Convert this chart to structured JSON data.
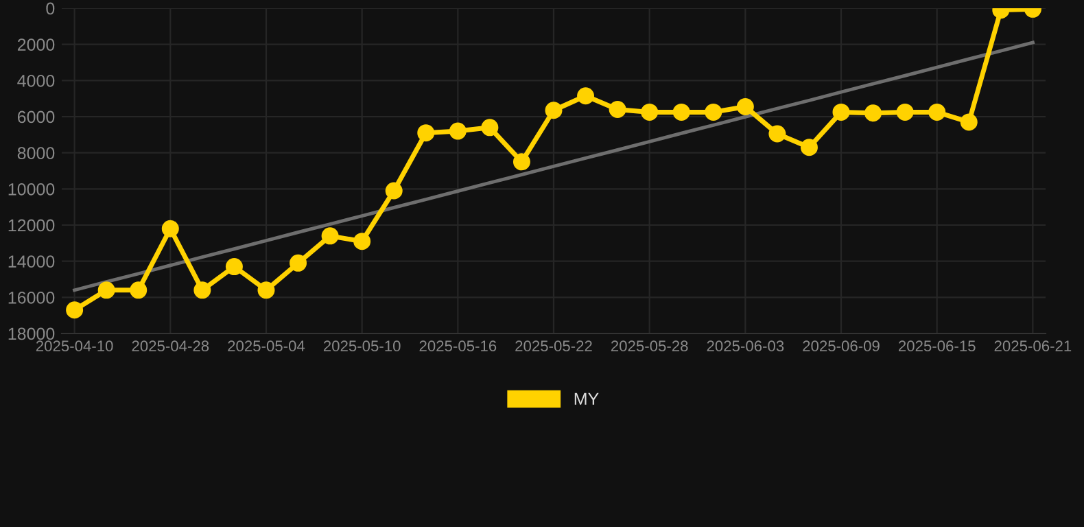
{
  "chart_data": {
    "type": "line",
    "categories": [
      "2025-04-10",
      null,
      null,
      "2025-04-28",
      null,
      null,
      "2025-05-04",
      null,
      null,
      "2025-05-10",
      null,
      null,
      "2025-05-16",
      null,
      null,
      "2025-05-22",
      null,
      null,
      "2025-05-28",
      null,
      null,
      "2025-06-03",
      null,
      null,
      "2025-06-09",
      null,
      null,
      "2025-06-15",
      null,
      null,
      "2025-06-21"
    ],
    "series": [
      {
        "name": "MY",
        "color": "#ffd200",
        "values": [
          16700,
          15600,
          15600,
          12200,
          15600,
          14300,
          15600,
          14100,
          12600,
          12900,
          10100,
          6900,
          6800,
          6600,
          8500,
          5650,
          4850,
          5600,
          5750,
          5750,
          5750,
          5450,
          6950,
          7700,
          5750,
          5800,
          5750,
          5750,
          6300,
          100,
          50
        ]
      },
      {
        "type": "line",
        "color": "#6e6e6e",
        "marker": "none",
        "values": [
          15600,
          15140,
          14690,
          14230,
          13770,
          13320,
          12860,
          12400,
          11950,
          11490,
          11030,
          10580,
          10120,
          9660,
          9210,
          8750,
          8290,
          7840,
          7380,
          6920,
          6470,
          6010,
          5550,
          5100,
          4640,
          4180,
          3730,
          3270,
          2810,
          2360,
          1900
        ]
      }
    ],
    "ylim": [
      18000,
      0
    ],
    "yticks": [
      0,
      2000,
      4000,
      6000,
      8000,
      10000,
      12000,
      14000,
      16000,
      18000
    ],
    "grid": true,
    "legend": "bottom",
    "marker": "circle",
    "line_style": "solid"
  }
}
